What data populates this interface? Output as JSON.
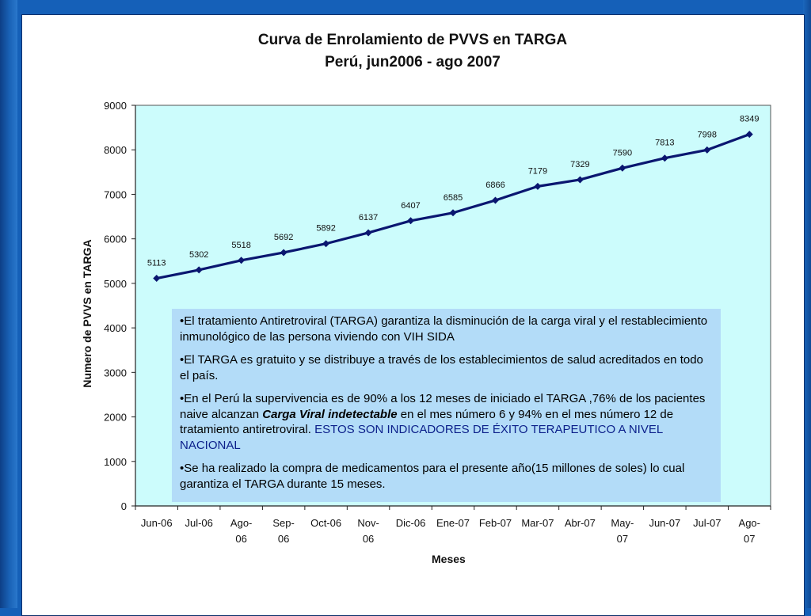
{
  "chart_data": {
    "type": "line",
    "title": "Curva de Enrolamiento de PVVS en TARGA",
    "subtitle": "Perú, jun2006 - ago 2007",
    "xlabel": "Meses",
    "ylabel": "Numero de PVVS en TARGA",
    "ylim": [
      0,
      9000
    ],
    "yticks": [
      0,
      1000,
      2000,
      3000,
      4000,
      5000,
      6000,
      7000,
      8000,
      9000
    ],
    "grid": false,
    "categories": [
      "Jun-06",
      "Jul-06",
      "Ago-06",
      "Sep-06",
      "Oct-06",
      "Nov-06",
      "Dic-06",
      "Ene-07",
      "Feb-07",
      "Mar-07",
      "Abr-07",
      "May-07",
      "Jun-07",
      "Jul-07",
      "Ago-07"
    ],
    "series": [
      {
        "name": "PVVS en TARGA",
        "values": [
          5113,
          5302,
          5518,
          5692,
          5892,
          6137,
          6407,
          6585,
          6866,
          7179,
          7329,
          7590,
          7813,
          7998,
          8349
        ],
        "color": "#0a1670",
        "marker": "diamond"
      }
    ],
    "plot_background": "#ccfcfc"
  },
  "info_box": {
    "background": "#b3dcf8",
    "paragraphs": [
      {
        "text": "•El tratamiento Antiretroviral (TARGA) garantiza la disminución de la carga viral y el restablecimiento inmunológico de las persona viviendo con VIH SIDA"
      },
      {
        "text": "•El TARGA es gratuito y se distribuye a través de los establecimientos de salud acreditados en todo el país."
      },
      {
        "before": "•En el Perú la supervivencia es de 90% a los 12 meses de iniciado el TARGA ,76% de los pacientes naive alcanzan ",
        "emphasis": "Carga Viral indetectable",
        "after": " en el mes número 6 y 94% en el mes número 12 de tratamiento antiretroviral. ",
        "highlight": "ESTOS SON INDICADORES DE ÉXITO TERAPEUTICO A NIVEL NACIONAL"
      },
      {
        "text": "•Se ha realizado la compra de medicamentos para el presente año(15 millones de soles) lo cual garantiza el TARGA durante 15 meses."
      }
    ]
  }
}
